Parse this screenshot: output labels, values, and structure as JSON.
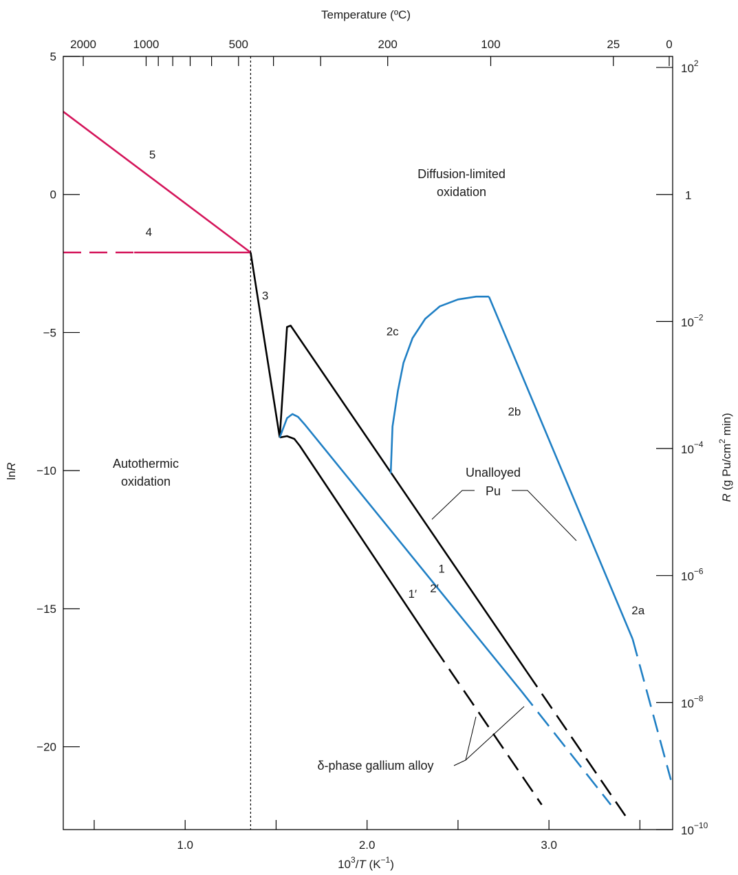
{
  "chart_data": {
    "type": "line",
    "xlabel_base": "10",
    "xlabel_exp": "3",
    "xlabel_mid": "/",
    "xlabel_var": "T",
    "xlabel_unit": " (K",
    "xlabel_unit_exp": "−1",
    "xlabel_close": ")",
    "ylabel_left_pre": "ln",
    "ylabel_left_var": "R",
    "ylabel_right_var": "R",
    "ylabel_right_unit": " (g Pu/cm",
    "ylabel_right_exp": "2",
    "ylabel_right_close": " min)",
    "top_axis_title": "Temperature (ºC)",
    "xlim": [
      0.33,
      3.68
    ],
    "ylim": [
      -23,
      5
    ],
    "x_ticks": [
      {
        "value": 1.0,
        "label": "1.0"
      },
      {
        "value": 2.0,
        "label": "2.0"
      },
      {
        "value": 3.0,
        "label": "3.0"
      }
    ],
    "x_minor_ticks": [
      0.5,
      1.5,
      2.5,
      3.5
    ],
    "y_ticks": [
      {
        "value": 5,
        "label": "5"
      },
      {
        "value": 0,
        "label": "0"
      },
      {
        "value": -5,
        "label": "−5"
      },
      {
        "value": -10,
        "label": "−10"
      },
      {
        "value": -15,
        "label": "−15"
      },
      {
        "value": -20,
        "label": "−20"
      }
    ],
    "top_ticks": [
      {
        "celsius": 2000,
        "label": "2000"
      },
      {
        "celsius": 1000,
        "label": "1000"
      },
      {
        "celsius": 500,
        "label": "500"
      },
      {
        "celsius": 200,
        "label": "200"
      },
      {
        "celsius": 100,
        "label": "100"
      },
      {
        "celsius": 25,
        "label": "25"
      },
      {
        "celsius": 0,
        "label": "0"
      }
    ],
    "top_minor_ticks_celsius": [
      900,
      800,
      700,
      600,
      400,
      300
    ],
    "right_ticks": [
      {
        "exp": "2",
        "lnR": 4.6
      },
      {
        "exp": "",
        "lnR": 0.0
      },
      {
        "exp": "−2",
        "lnR": -4.6
      },
      {
        "exp": "−4",
        "lnR": -9.2
      },
      {
        "exp": "−6",
        "lnR": -13.8
      },
      {
        "exp": "−8",
        "lnR": -18.4
      },
      {
        "exp": "−10",
        "lnR": -23.0
      }
    ],
    "right_tick_base": "10",
    "right_tick_one": "1",
    "vline_x": 1.36,
    "series": [
      {
        "name": "5",
        "color": "#d4145a",
        "dashed": false,
        "points": [
          [
            0.33,
            3.0
          ],
          [
            1.36,
            -2.1
          ]
        ]
      },
      {
        "name": "4",
        "color": "#d4145a",
        "dashed": false,
        "points": [
          [
            0.72,
            -2.1
          ],
          [
            1.36,
            -2.1
          ]
        ]
      },
      {
        "name": "4-dashed",
        "color": "#d4145a",
        "dashed": true,
        "points": [
          [
            0.33,
            -2.1
          ],
          [
            0.72,
            -2.1
          ]
        ]
      },
      {
        "name": "3",
        "color": "#000000",
        "dashed": false,
        "points": [
          [
            1.36,
            -2.1
          ],
          [
            1.52,
            -8.8
          ]
        ]
      },
      {
        "name": "1",
        "color": "#000000",
        "dashed": false,
        "points": [
          [
            1.52,
            -8.8
          ],
          [
            1.56,
            -4.8
          ],
          [
            1.58,
            -4.75
          ],
          [
            2.88,
            -17.3
          ]
        ]
      },
      {
        "name": "1-dashed",
        "color": "#000000",
        "dashed": true,
        "points": [
          [
            2.88,
            -17.3
          ],
          [
            3.42,
            -22.5
          ]
        ]
      },
      {
        "name": "1′",
        "color": "#000000",
        "dashed": false,
        "points": [
          [
            1.52,
            -8.8
          ],
          [
            1.56,
            -8.75
          ],
          [
            1.6,
            -8.85
          ],
          [
            1.63,
            -9.1
          ],
          [
            2.37,
            -16.4
          ]
        ]
      },
      {
        "name": "1′-dashed",
        "color": "#000000",
        "dashed": true,
        "points": [
          [
            2.37,
            -16.4
          ],
          [
            2.96,
            -22.1
          ]
        ]
      },
      {
        "name": "2′",
        "color": "#1f7fc4",
        "dashed": false,
        "points": [
          [
            1.52,
            -8.8
          ],
          [
            1.56,
            -8.1
          ],
          [
            1.59,
            -7.95
          ],
          [
            1.62,
            -8.05
          ],
          [
            1.66,
            -8.35
          ],
          [
            2.85,
            -18.0
          ]
        ]
      },
      {
        "name": "2′-dashed",
        "color": "#1f7fc4",
        "dashed": true,
        "points": [
          [
            2.85,
            -18.0
          ],
          [
            3.34,
            -22.1
          ]
        ]
      },
      {
        "name": "2c",
        "color": "#1f7fc4",
        "dashed": false,
        "points": [
          [
            2.13,
            -10.1
          ],
          [
            2.14,
            -8.4
          ],
          [
            2.17,
            -7.1
          ],
          [
            2.2,
            -6.1
          ],
          [
            2.25,
            -5.2
          ],
          [
            2.32,
            -4.5
          ],
          [
            2.4,
            -4.05
          ],
          [
            2.5,
            -3.8
          ],
          [
            2.6,
            -3.7
          ],
          [
            2.67,
            -3.7
          ]
        ]
      },
      {
        "name": "2b/2a",
        "color": "#1f7fc4",
        "dashed": false,
        "points": [
          [
            2.67,
            -3.7
          ],
          [
            3.46,
            -16.1
          ]
        ]
      },
      {
        "name": "2a-dashed",
        "color": "#1f7fc4",
        "dashed": true,
        "points": [
          [
            3.46,
            -16.1
          ],
          [
            3.67,
            -21.2
          ]
        ]
      }
    ],
    "curve_labels": [
      {
        "text": "5",
        "x": 0.82,
        "y": 1.3
      },
      {
        "text": "4",
        "x": 0.8,
        "y": -1.5
      },
      {
        "text": "3",
        "x": 1.44,
        "y": -3.8
      },
      {
        "text": "2c",
        "x": 2.14,
        "y": -5.1
      },
      {
        "text": "2b",
        "x": 2.81,
        "y": -8.0
      },
      {
        "text": "1",
        "x": 2.41,
        "y": -13.7
      },
      {
        "text": "2′",
        "x": 2.37,
        "y": -14.4
      },
      {
        "text": "1′",
        "x": 2.25,
        "y": -14.6
      },
      {
        "text": "2a",
        "x": 3.49,
        "y": -15.2
      }
    ],
    "annotations": {
      "diffusion_line1": "Diffusion-limited",
      "diffusion_line2": "oxidation",
      "autothermic_line1": "Autothermic",
      "autothermic_line2": "oxidation",
      "unalloyed_line1": "Unalloyed",
      "unalloyed_line2": "Pu",
      "delta_alloy": "δ-phase gallium alloy"
    },
    "grid": false,
    "legend": "none"
  }
}
